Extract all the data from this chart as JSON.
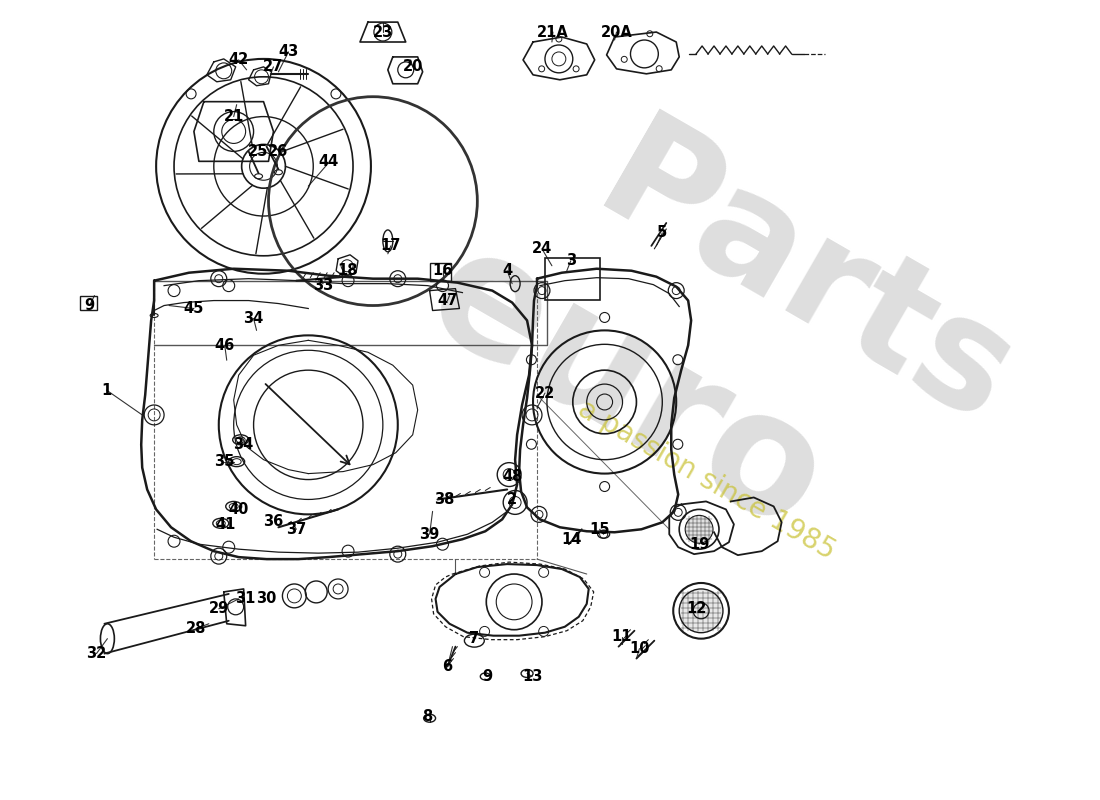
{
  "background_color": "#ffffff",
  "line_color": "#1a1a1a",
  "watermark_euro_color": "#d0d0d0",
  "watermark_year_color": "#c8c832",
  "part_labels": [
    [
      385,
      30,
      "23"
    ],
    [
      275,
      65,
      "27"
    ],
    [
      415,
      65,
      "20"
    ],
    [
      235,
      115,
      "21"
    ],
    [
      260,
      150,
      "25"
    ],
    [
      280,
      150,
      "26"
    ],
    [
      556,
      30,
      "21A"
    ],
    [
      620,
      30,
      "20A"
    ],
    [
      240,
      58,
      "42"
    ],
    [
      290,
      50,
      "43"
    ],
    [
      330,
      160,
      "44"
    ],
    [
      90,
      305,
      "9"
    ],
    [
      195,
      308,
      "45"
    ],
    [
      107,
      390,
      "1"
    ],
    [
      325,
      285,
      "33"
    ],
    [
      350,
      270,
      "18"
    ],
    [
      393,
      245,
      "17"
    ],
    [
      445,
      270,
      "16"
    ],
    [
      450,
      300,
      "47"
    ],
    [
      510,
      270,
      "4"
    ],
    [
      574,
      260,
      "3"
    ],
    [
      545,
      248,
      "24"
    ],
    [
      666,
      232,
      "5"
    ],
    [
      255,
      318,
      "34"
    ],
    [
      226,
      345,
      "46"
    ],
    [
      548,
      393,
      "22"
    ],
    [
      245,
      445,
      "34"
    ],
    [
      225,
      462,
      "35"
    ],
    [
      240,
      510,
      "40"
    ],
    [
      227,
      525,
      "41"
    ],
    [
      298,
      530,
      "37"
    ],
    [
      275,
      522,
      "36"
    ],
    [
      515,
      477,
      "48"
    ],
    [
      515,
      500,
      "2"
    ],
    [
      447,
      500,
      "38"
    ],
    [
      432,
      535,
      "39"
    ],
    [
      575,
      540,
      "14"
    ],
    [
      603,
      530,
      "15"
    ],
    [
      703,
      545,
      "19"
    ],
    [
      700,
      610,
      "12"
    ],
    [
      220,
      610,
      "29"
    ],
    [
      247,
      600,
      "31"
    ],
    [
      268,
      600,
      "30"
    ],
    [
      197,
      630,
      "28"
    ],
    [
      97,
      655,
      "32"
    ],
    [
      477,
      640,
      "7"
    ],
    [
      450,
      668,
      "6"
    ],
    [
      430,
      718,
      "8"
    ],
    [
      490,
      678,
      "9"
    ],
    [
      535,
      678,
      "13"
    ],
    [
      625,
      638,
      "11"
    ],
    [
      643,
      650,
      "10"
    ]
  ]
}
